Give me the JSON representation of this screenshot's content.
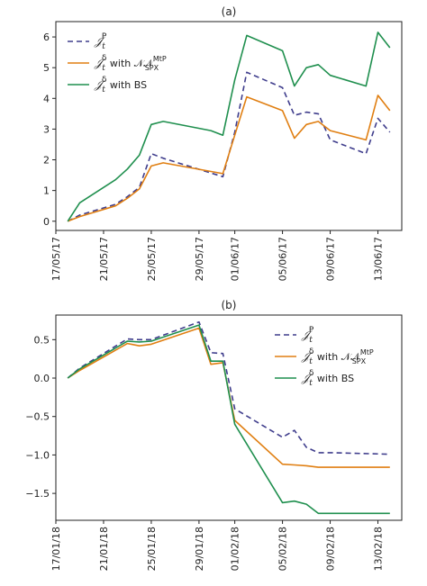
{
  "chart_data": [
    {
      "type": "line",
      "panel_label": "(a)",
      "xticks": [
        "17/05/17",
        "21/05/17",
        "25/05/17",
        "29/05/17",
        "01/06/17",
        "05/06/17",
        "09/06/17",
        "13/06/17"
      ],
      "xlim": [
        "2017-05-17",
        "2017-06-15"
      ],
      "ylim": [
        -0.3,
        6.5
      ],
      "yticks": [
        "0",
        "1",
        "2",
        "3",
        "4",
        "5",
        "6"
      ],
      "legend_position": "upper-left",
      "series": [
        {
          "legend": {
            "sym": "𝒥",
            "sub": "t",
            "sup": "P",
            "suffix": "",
            "supscript": ""
          },
          "color": "#3f3d8c",
          "dash": "6,4",
          "points": [
            [
              "2017-05-18",
              0.0
            ],
            [
              "2017-05-19",
              0.2
            ],
            [
              "2017-05-22",
              0.55
            ],
            [
              "2017-05-23",
              0.8
            ],
            [
              "2017-05-24",
              1.1
            ],
            [
              "2017-05-25",
              2.2
            ],
            [
              "2017-05-26",
              2.05
            ],
            [
              "2017-05-31",
              1.45
            ],
            [
              "2017-06-01",
              2.9
            ],
            [
              "2017-06-02",
              4.85
            ],
            [
              "2017-06-05",
              4.35
            ],
            [
              "2017-06-06",
              3.45
            ],
            [
              "2017-06-07",
              3.55
            ],
            [
              "2017-06-08",
              3.5
            ],
            [
              "2017-06-09",
              2.65
            ],
            [
              "2017-06-12",
              2.2
            ],
            [
              "2017-06-13",
              3.35
            ],
            [
              "2017-06-14",
              2.9
            ]
          ]
        },
        {
          "legend": {
            "sym": "𝒥",
            "sub": "t",
            "sup": "δ",
            "suffix": " with 𝒩𝒩",
            "supscript": "MtP",
            "subscript": "SPX"
          },
          "color": "#e07f12",
          "dash": "",
          "points": [
            [
              "2017-05-18",
              0.0
            ],
            [
              "2017-05-19",
              0.15
            ],
            [
              "2017-05-22",
              0.5
            ],
            [
              "2017-05-23",
              0.75
            ],
            [
              "2017-05-24",
              1.05
            ],
            [
              "2017-05-25",
              1.8
            ],
            [
              "2017-05-26",
              1.9
            ],
            [
              "2017-05-31",
              1.55
            ],
            [
              "2017-06-01",
              2.8
            ],
            [
              "2017-06-02",
              4.05
            ],
            [
              "2017-06-05",
              3.6
            ],
            [
              "2017-06-06",
              2.7
            ],
            [
              "2017-06-07",
              3.15
            ],
            [
              "2017-06-08",
              3.25
            ],
            [
              "2017-06-09",
              2.95
            ],
            [
              "2017-06-12",
              2.65
            ],
            [
              "2017-06-13",
              4.1
            ],
            [
              "2017-06-14",
              3.6
            ]
          ]
        },
        {
          "legend": {
            "sym": "𝒥",
            "sub": "t",
            "sup": "δ",
            "suffix": " with BS",
            "supscript": ""
          },
          "color": "#1f8f4e",
          "dash": "",
          "points": [
            [
              "2017-05-18",
              0.0
            ],
            [
              "2017-05-19",
              0.6
            ],
            [
              "2017-05-22",
              1.35
            ],
            [
              "2017-05-23",
              1.7
            ],
            [
              "2017-05-24",
              2.15
            ],
            [
              "2017-05-25",
              3.15
            ],
            [
              "2017-05-26",
              3.25
            ],
            [
              "2017-05-30",
              2.95
            ],
            [
              "2017-05-31",
              2.8
            ],
            [
              "2017-06-01",
              4.6
            ],
            [
              "2017-06-02",
              6.05
            ],
            [
              "2017-06-05",
              5.55
            ],
            [
              "2017-06-06",
              4.4
            ],
            [
              "2017-06-07",
              5.0
            ],
            [
              "2017-06-08",
              5.1
            ],
            [
              "2017-06-09",
              4.75
            ],
            [
              "2017-06-12",
              4.4
            ],
            [
              "2017-06-13",
              6.15
            ],
            [
              "2017-06-14",
              5.65
            ]
          ]
        }
      ]
    },
    {
      "type": "line",
      "panel_label": "(b)",
      "xticks": [
        "17/01/18",
        "21/01/18",
        "25/01/18",
        "29/01/18",
        "01/02/18",
        "05/02/18",
        "09/02/18",
        "13/02/18"
      ],
      "xlim": [
        "2018-01-17",
        "2018-02-15"
      ],
      "ylim": [
        -1.85,
        0.82
      ],
      "yticks": [
        "−1.5",
        "−1.0",
        "−0.5",
        "0.0",
        "0.5"
      ],
      "legend_position": "upper-right",
      "series": [
        {
          "legend": {
            "sym": "𝒥",
            "sub": "t",
            "sup": "P",
            "suffix": "",
            "supscript": ""
          },
          "color": "#3f3d8c",
          "dash": "6,4",
          "points": [
            [
              "2018-01-18",
              0.0
            ],
            [
              "2018-01-19",
              0.13
            ],
            [
              "2018-01-23",
              0.51
            ],
            [
              "2018-01-24",
              0.5
            ],
            [
              "2018-01-25",
              0.5
            ],
            [
              "2018-01-29",
              0.73
            ],
            [
              "2018-01-30",
              0.33
            ],
            [
              "2018-01-31",
              0.32
            ],
            [
              "2018-02-01",
              -0.4
            ],
            [
              "2018-02-05",
              -0.77
            ],
            [
              "2018-02-06",
              -0.68
            ],
            [
              "2018-02-07",
              -0.9
            ],
            [
              "2018-02-08",
              -0.97
            ],
            [
              "2018-02-09",
              -0.97
            ],
            [
              "2018-02-14",
              -0.99
            ]
          ]
        },
        {
          "legend": {
            "sym": "𝒥",
            "sub": "t",
            "sup": "δ",
            "suffix": " with 𝒩𝒩",
            "supscript": "MtP",
            "subscript": "SPX"
          },
          "color": "#e07f12",
          "dash": "",
          "points": [
            [
              "2018-01-18",
              0.0
            ],
            [
              "2018-01-19",
              0.1
            ],
            [
              "2018-01-23",
              0.45
            ],
            [
              "2018-01-24",
              0.42
            ],
            [
              "2018-01-25",
              0.44
            ],
            [
              "2018-01-29",
              0.65
            ],
            [
              "2018-01-30",
              0.18
            ],
            [
              "2018-01-31",
              0.2
            ],
            [
              "2018-02-01",
              -0.55
            ],
            [
              "2018-02-05",
              -1.12
            ],
            [
              "2018-02-06",
              -1.13
            ],
            [
              "2018-02-07",
              -1.14
            ],
            [
              "2018-02-08",
              -1.16
            ],
            [
              "2018-02-09",
              -1.16
            ],
            [
              "2018-02-14",
              -1.16
            ]
          ]
        },
        {
          "legend": {
            "sym": "𝒥",
            "sub": "t",
            "sup": "δ",
            "suffix": " with BS",
            "supscript": ""
          },
          "color": "#1f8f4e",
          "dash": "",
          "points": [
            [
              "2018-01-18",
              0.0
            ],
            [
              "2018-01-19",
              0.12
            ],
            [
              "2018-01-23",
              0.48
            ],
            [
              "2018-01-24",
              0.47
            ],
            [
              "2018-01-25",
              0.48
            ],
            [
              "2018-01-29",
              0.69
            ],
            [
              "2018-01-30",
              0.22
            ],
            [
              "2018-01-31",
              0.22
            ],
            [
              "2018-02-01",
              -0.6
            ],
            [
              "2018-02-05",
              -1.62
            ],
            [
              "2018-02-06",
              -1.6
            ],
            [
              "2018-02-07",
              -1.64
            ],
            [
              "2018-02-08",
              -1.76
            ],
            [
              "2018-02-09",
              -1.76
            ],
            [
              "2018-02-14",
              -1.76
            ]
          ]
        }
      ]
    }
  ]
}
